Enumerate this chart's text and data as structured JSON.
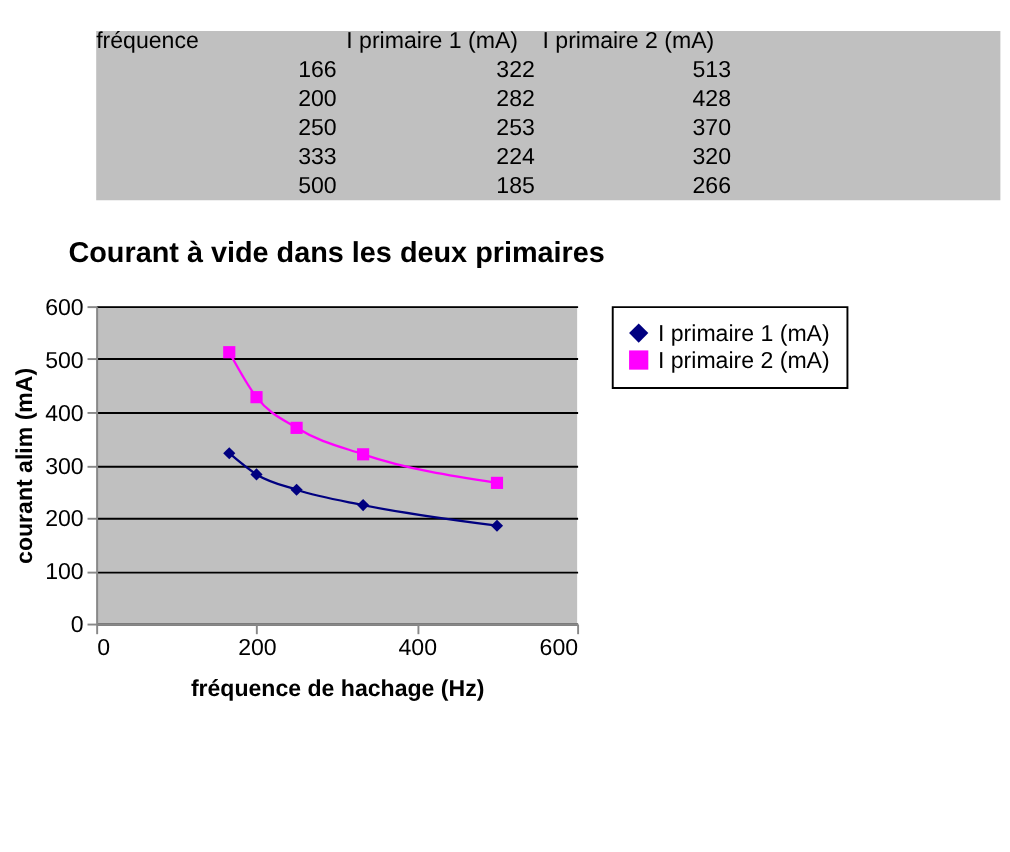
{
  "chart_data": [
    {
      "type": "other",
      "annotations": [
        "fréquence",
        "I primaire 1 (mA)",
        "I primaire 2 (mA)",
        "166",
        "322",
        "513",
        "200",
        "282",
        "428",
        "250",
        "253",
        "370",
        "333",
        "224",
        "320",
        "500",
        "185",
        "266"
      ]
    },
    {
      "type": "line",
      "title": "Courant à vide dans les deux primaires",
      "xlabel": "fréquence de hachage (Hz)",
      "ylabel": "courant alim (mA)",
      "x": [
        166,
        200,
        250,
        333,
        500
      ],
      "series": [
        {
          "name": "I primaire 1 (mA)",
          "color": "#000080",
          "marker": "diamond",
          "values": [
            322,
            282,
            253,
            224,
            185
          ]
        },
        {
          "name": "I primaire 2 (mA)",
          "color": "#ff00ff",
          "marker": "square",
          "values": [
            513,
            428,
            370,
            320,
            266
          ]
        }
      ],
      "xlim": [
        0,
        600
      ],
      "xticks": [
        0,
        200,
        400,
        600
      ],
      "ylim": [
        0,
        600
      ],
      "yticks": [
        0,
        100,
        200,
        300,
        400,
        500,
        600
      ],
      "grid": "y",
      "legend": "right"
    }
  ]
}
